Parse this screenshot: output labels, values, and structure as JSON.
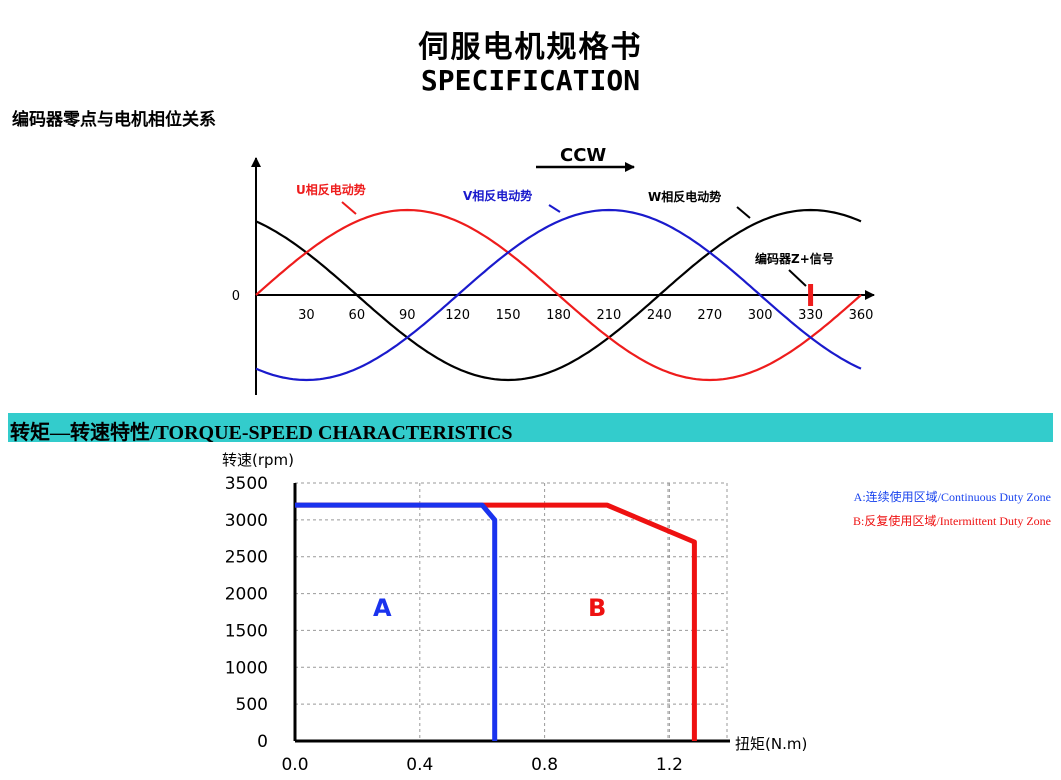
{
  "header": {
    "title_cn": "伺服电机规格书",
    "title_en": "SPECIFICATION"
  },
  "encoder_section": {
    "title": "编码器零点与电机相位关系",
    "direction_label": "CCW",
    "zero_label": "0",
    "u_label": "U相反电动势",
    "v_label": "V相反电动势",
    "w_label": "W相反电动势",
    "z_label": "编码器Z+信号",
    "u_color": "#ee1c1c",
    "v_color": "#1a1acc",
    "w_color": "#000000",
    "z_position_deg": 330
  },
  "torque_section": {
    "bar_title": "转矩—转速特性/TORQUE-SPEED CHARACTERISTICS",
    "bar_color": "#33cccc",
    "legend_a": "A:连续使用区域/Continuous Duty Zone",
    "legend_b": "B:反复使用区域/Intermittent Duty Zone",
    "legend_a_color": "#1a44ee",
    "legend_b_color": "#ee1111",
    "zone_a_label": "A",
    "zone_b_label": "B"
  },
  "chart_data": [
    {
      "type": "line",
      "xlabel": "",
      "ylabel": "",
      "x_ticks": [
        30,
        60,
        90,
        120,
        150,
        180,
        210,
        240,
        270,
        300,
        330,
        360
      ],
      "xlim": [
        0,
        360
      ],
      "series": [
        {
          "name": "U相反电动势",
          "function": "sin(theta)",
          "phase_deg": 0,
          "color": "#ee1c1c"
        },
        {
          "name": "V相反电动势",
          "function": "sin(theta-120)",
          "phase_deg": -120,
          "color": "#1a1acc"
        },
        {
          "name": "W相反电动势",
          "function": "sin(theta+120)",
          "phase_deg": 120,
          "color": "#000000"
        }
      ],
      "marker": {
        "name": "编码器Z+信号",
        "x": 330
      }
    },
    {
      "type": "line",
      "ylabel": "转速(rpm)",
      "xlabel": "扭矩(N.m)",
      "xlim": [
        0,
        1.4
      ],
      "ylim": [
        0,
        3500
      ],
      "x_ticks": [
        "0.0",
        "0.4",
        "0.8",
        "1.2"
      ],
      "y_ticks": [
        "0",
        "500",
        "1000",
        "1500",
        "2000",
        "2500",
        "3000",
        "3500"
      ],
      "grid": true,
      "series": [
        {
          "name": "A",
          "color": "#1a33ee",
          "points": [
            [
              0,
              3200
            ],
            [
              0.6,
              3200
            ],
            [
              0.64,
              3000
            ],
            [
              0.64,
              0
            ]
          ]
        },
        {
          "name": "B",
          "color": "#ee1111",
          "points": [
            [
              0,
              3200
            ],
            [
              1.0,
              3200
            ],
            [
              1.28,
              2700
            ],
            [
              1.28,
              0
            ]
          ]
        }
      ]
    }
  ]
}
